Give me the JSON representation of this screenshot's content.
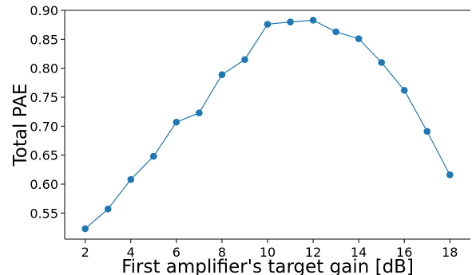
{
  "chart_data": {
    "type": "line",
    "title": "",
    "xlabel": "First amplifier's target gain [dB]",
    "ylabel": "Total PAE",
    "x": [
      2,
      3,
      4,
      5,
      6,
      7,
      8,
      9,
      10,
      11,
      12,
      13,
      14,
      15,
      16,
      17,
      18
    ],
    "series": [
      {
        "values": [
          0.523,
          0.557,
          0.608,
          0.648,
          0.707,
          0.723,
          0.789,
          0.815,
          0.876,
          0.88,
          0.883,
          0.863,
          0.851,
          0.81,
          0.762,
          0.691,
          0.616
        ]
      }
    ],
    "xlim": [
      1.1,
      18.9
    ],
    "ylim": [
      0.505,
      0.9
    ],
    "xticks": [
      2,
      4,
      6,
      8,
      10,
      12,
      14,
      16,
      18
    ],
    "yticks": [
      0.55,
      0.6,
      0.65,
      0.7,
      0.75,
      0.8,
      0.85,
      0.9
    ],
    "ytick_labels": [
      "0.55",
      "0.60",
      "0.65",
      "0.70",
      "0.75",
      "0.80",
      "0.85",
      "0.90"
    ],
    "grid": false,
    "line_color": "#1f77b4",
    "marker_color": "#1f77b4",
    "axis_color": "#000000"
  }
}
